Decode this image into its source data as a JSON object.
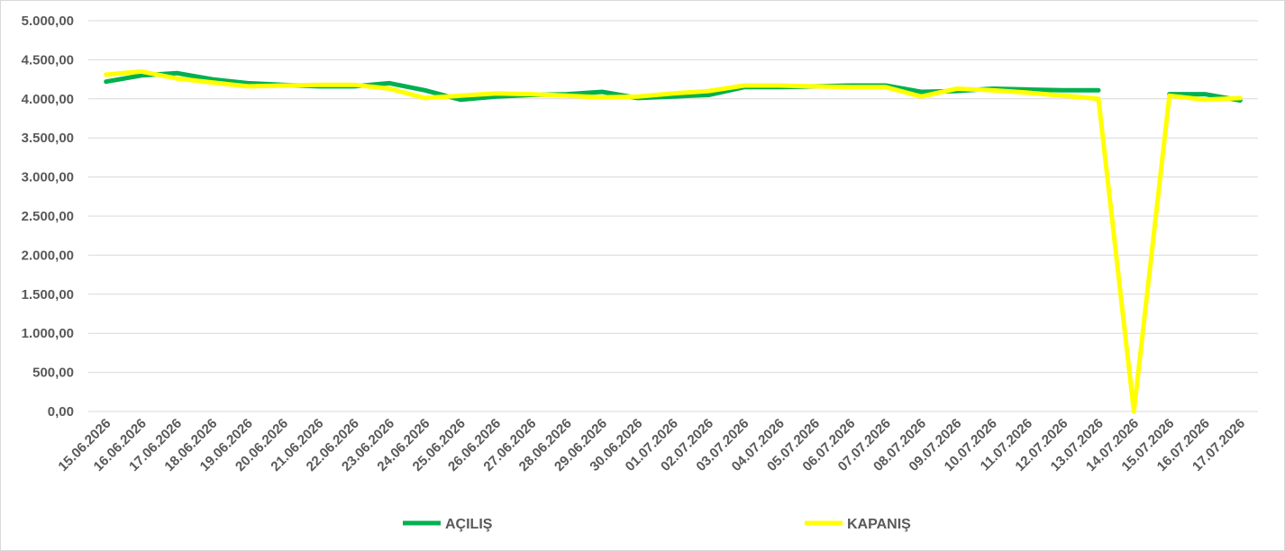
{
  "chart_data": {
    "type": "line",
    "title": "",
    "xlabel": "",
    "ylabel": "",
    "x": [
      "15.06.2026",
      "16.06.2026",
      "17.06.2026",
      "18.06.2026",
      "19.06.2026",
      "20.06.2026",
      "21.06.2026",
      "22.06.2026",
      "23.06.2026",
      "24.06.2026",
      "25.06.2026",
      "26.06.2026",
      "27.06.2026",
      "28.06.2026",
      "29.06.2026",
      "30.06.2026",
      "01.07.2026",
      "02.07.2026",
      "03.07.2026",
      "04.07.2026",
      "05.07.2026",
      "06.07.2026",
      "07.07.2026",
      "08.07.2026",
      "09.07.2026",
      "10.07.2026",
      "11.07.2026",
      "12.07.2026",
      "13.07.2026",
      "14.07.2026",
      "15.07.2026",
      "16.07.2026",
      "17.07.2026"
    ],
    "y_ticks": [
      "0,00",
      "500,00",
      "1.000,00",
      "1.500,00",
      "2.000,00",
      "2.500,00",
      "3.000,00",
      "3.500,00",
      "4.000,00",
      "4.500,00",
      "5.000,00"
    ],
    "ylim": [
      0,
      5000
    ],
    "grid": true,
    "legend_position": "bottom",
    "series": [
      {
        "name": "AÇILIŞ",
        "color": "#00b050",
        "values": [
          4220,
          4300,
          4330,
          4250,
          4200,
          4180,
          4160,
          4160,
          4200,
          4110,
          3990,
          4030,
          4050,
          4060,
          4090,
          4010,
          4030,
          4050,
          4150,
          4150,
          4160,
          4170,
          4170,
          4090,
          4100,
          4130,
          4120,
          4110,
          4110,
          null,
          4060,
          4060,
          3980
        ]
      },
      {
        "name": "KAPANIŞ",
        "color": "#ffff00",
        "values": [
          4310,
          4350,
          4260,
          4210,
          4160,
          4170,
          4180,
          4180,
          4130,
          4010,
          4040,
          4070,
          4060,
          4040,
          4020,
          4030,
          4070,
          4100,
          4170,
          4170,
          4160,
          4150,
          4150,
          4030,
          4130,
          4110,
          4080,
          4040,
          4000,
          0,
          4040,
          3990,
          4010
        ]
      }
    ]
  }
}
